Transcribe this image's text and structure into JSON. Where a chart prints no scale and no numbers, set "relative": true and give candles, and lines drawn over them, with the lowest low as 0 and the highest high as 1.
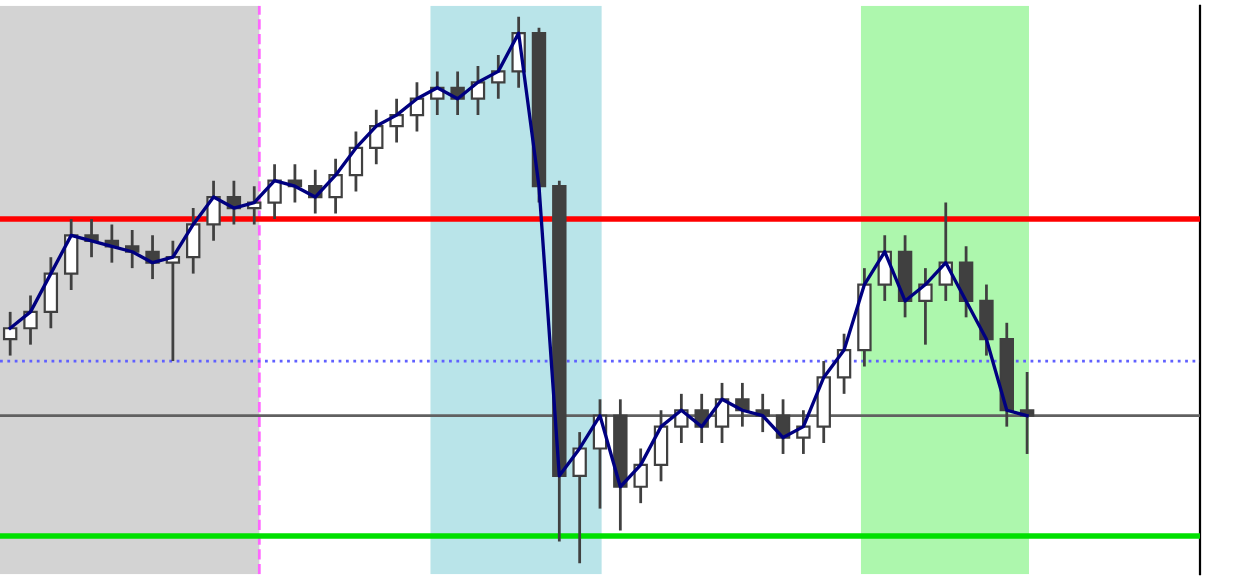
{
  "chart_data": {
    "type": "candlestick",
    "relative": true,
    "color": "#404040",
    "categories": [
      null,
      null,
      null,
      null,
      null,
      null,
      null,
      null,
      null,
      null,
      null,
      null,
      null,
      null,
      null,
      null,
      null,
      null,
      null,
      null,
      null,
      null,
      null,
      null,
      null,
      null,
      null,
      null,
      null,
      null,
      null,
      null,
      null,
      null,
      null,
      null,
      null,
      null,
      null,
      null,
      null,
      null,
      null,
      null,
      null,
      null,
      null,
      null,
      null,
      null,
      null
    ],
    "ohlc": [
      [
        0.41,
        0.46,
        0.38,
        0.43
      ],
      [
        0.43,
        0.49,
        0.4,
        0.46
      ],
      [
        0.46,
        0.56,
        0.43,
        0.53
      ],
      [
        0.53,
        0.63,
        0.5,
        0.6
      ],
      [
        0.6,
        0.63,
        0.56,
        0.59
      ],
      [
        0.59,
        0.62,
        0.55,
        0.58
      ],
      [
        0.58,
        0.61,
        0.54,
        0.57
      ],
      [
        0.57,
        0.6,
        0.52,
        0.55
      ],
      [
        0.55,
        0.59,
        0.37,
        0.56
      ],
      [
        0.56,
        0.65,
        0.53,
        0.62
      ],
      [
        0.62,
        0.7,
        0.59,
        0.67
      ],
      [
        0.67,
        0.7,
        0.62,
        0.65
      ],
      [
        0.65,
        0.69,
        0.62,
        0.66
      ],
      [
        0.66,
        0.73,
        0.63,
        0.7
      ],
      [
        0.7,
        0.73,
        0.66,
        0.69
      ],
      [
        0.69,
        0.72,
        0.64,
        0.67
      ],
      [
        0.67,
        0.74,
        0.64,
        0.71
      ],
      [
        0.71,
        0.79,
        0.68,
        0.76
      ],
      [
        0.76,
        0.83,
        0.73,
        0.8
      ],
      [
        0.8,
        0.85,
        0.77,
        0.82
      ],
      [
        0.82,
        0.88,
        0.79,
        0.85
      ],
      [
        0.85,
        0.9,
        0.82,
        0.87
      ],
      [
        0.87,
        0.9,
        0.82,
        0.85
      ],
      [
        0.85,
        0.91,
        0.82,
        0.88
      ],
      [
        0.88,
        0.93,
        0.85,
        0.9
      ],
      [
        0.9,
        1,
        0.87,
        0.97
      ],
      [
        0.97,
        0.98,
        0.66,
        0.69
      ],
      [
        0.69,
        0.7,
        0.04,
        0.16
      ],
      [
        0.16,
        0.24,
        0,
        0.21
      ],
      [
        0.21,
        0.3,
        0.1,
        0.27
      ],
      [
        0.27,
        0.3,
        0.06,
        0.14
      ],
      [
        0.14,
        0.21,
        0.11,
        0.18
      ],
      [
        0.18,
        0.28,
        0.15,
        0.25
      ],
      [
        0.25,
        0.31,
        0.22,
        0.28
      ],
      [
        0.28,
        0.31,
        0.22,
        0.25
      ],
      [
        0.25,
        0.33,
        0.22,
        0.3
      ],
      [
        0.3,
        0.33,
        0.25,
        0.28
      ],
      [
        0.28,
        0.31,
        0.24,
        0.27
      ],
      [
        0.27,
        0.3,
        0.2,
        0.23
      ],
      [
        0.23,
        0.28,
        0.2,
        0.25
      ],
      [
        0.25,
        0.37,
        0.22,
        0.34
      ],
      [
        0.34,
        0.42,
        0.31,
        0.39
      ],
      [
        0.39,
        0.54,
        0.36,
        0.51
      ],
      [
        0.51,
        0.6,
        0.48,
        0.57
      ],
      [
        0.57,
        0.6,
        0.45,
        0.48
      ],
      [
        0.48,
        0.54,
        0.4,
        0.51
      ],
      [
        0.51,
        0.66,
        0.48,
        0.55
      ],
      [
        0.55,
        0.58,
        0.45,
        0.48
      ],
      [
        0.48,
        0.51,
        0.38,
        0.41
      ],
      [
        0.41,
        0.44,
        0.25,
        0.28
      ],
      [
        0.28,
        0.35,
        0.2,
        0.27
      ]
    ],
    "series": [
      {
        "type": "line",
        "color": "#000080",
        "values": [
          0.43,
          0.46,
          0.53,
          0.6,
          0.59,
          0.58,
          0.57,
          0.55,
          0.56,
          0.62,
          0.67,
          0.65,
          0.66,
          0.7,
          0.69,
          0.67,
          0.71,
          0.76,
          0.8,
          0.82,
          0.85,
          0.87,
          0.85,
          0.88,
          0.9,
          0.97,
          0.69,
          0.16,
          0.21,
          0.27,
          0.14,
          0.18,
          0.25,
          0.28,
          0.25,
          0.3,
          0.28,
          0.27,
          0.23,
          0.25,
          0.34,
          0.39,
          0.51,
          0.57,
          0.48,
          0.51,
          0.55,
          0.48,
          0.41,
          0.28,
          0.27
        ]
      }
    ],
    "ref_lines": [
      {
        "axis": "y",
        "value": 0.63,
        "color": "#ff0000",
        "line_style": "solid"
      },
      {
        "axis": "y",
        "value": 0.05,
        "color": "#00e000",
        "line_style": "solid"
      },
      {
        "axis": "y",
        "value": 0.27,
        "color": "#606060",
        "line_style": "solid"
      },
      {
        "axis": "y",
        "value": 0.37,
        "color": "#6060ff",
        "line_style": "dotted"
      }
    ]
  }
}
